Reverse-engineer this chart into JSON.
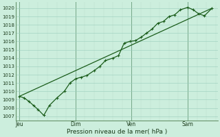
{
  "xlabel": "Pression niveau de la mer( hPa )",
  "bg_color": "#cceedd",
  "plot_bg_color": "#cceedd",
  "grid_major_color": "#99ccbb",
  "grid_minor_color": "#bbddcc",
  "line_color": "#1a5c1a",
  "ylim": [
    1006.5,
    1020.7
  ],
  "yticks": [
    1007,
    1008,
    1009,
    1010,
    1011,
    1012,
    1013,
    1014,
    1015,
    1016,
    1017,
    1018,
    1019,
    1020
  ],
  "xtick_labels": [
    "Jeu",
    "Dim",
    "Ven",
    "Sam"
  ],
  "xtick_positions": [
    0,
    3,
    6,
    9
  ],
  "vline_positions": [
    0,
    3,
    6,
    9
  ],
  "line1_x": [
    0.0,
    0.25,
    0.5,
    0.75,
    1.0,
    1.3,
    1.6,
    2.0,
    2.4,
    2.7,
    3.0,
    3.3,
    3.6,
    4.0,
    4.3,
    4.6,
    5.0,
    5.3,
    5.6,
    5.9,
    6.2,
    6.5,
    6.8,
    7.1,
    7.4,
    7.7,
    8.0,
    8.3,
    8.6,
    9.0,
    9.3,
    9.6,
    9.9,
    10.3
  ],
  "line1_y": [
    1009.4,
    1009.2,
    1008.8,
    1008.3,
    1007.8,
    1007.1,
    1008.3,
    1009.2,
    1010.0,
    1011.0,
    1011.5,
    1011.7,
    1011.9,
    1012.5,
    1013.0,
    1013.7,
    1014.0,
    1014.3,
    1015.8,
    1016.0,
    1016.1,
    1016.5,
    1017.0,
    1017.5,
    1018.2,
    1018.4,
    1019.0,
    1019.2,
    1019.8,
    1020.1,
    1019.8,
    1019.3,
    1019.1,
    1020.0
  ],
  "line2_x": [
    0.0,
    10.3
  ],
  "line2_y": [
    1009.4,
    1020.0
  ],
  "xlim": [
    -0.2,
    10.6
  ]
}
